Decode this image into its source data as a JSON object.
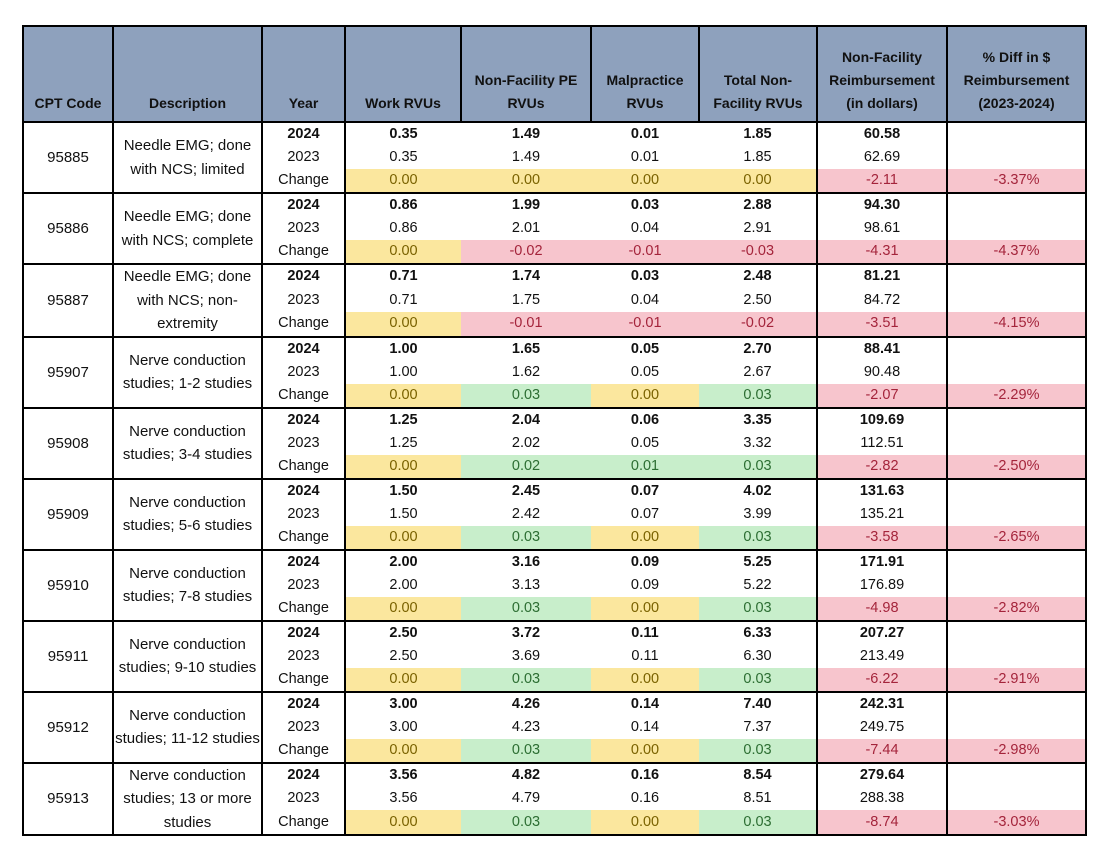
{
  "headers": {
    "cpt_code": "CPT Code",
    "description": "Description",
    "year": "Year",
    "work": "Work RVUs",
    "pe_l1": "Non-Facility PE",
    "pe_l2": "RVUs",
    "mal_l1": "Malpractice",
    "mal_l2": "RVUs",
    "tot_l1": "Total Non-",
    "tot_l2": "Facility RVUs",
    "reimb_l1": "Non-Facility",
    "reimb_l2": "Reimbursement",
    "reimb_l3": "(in dollars)",
    "pct_l1": "% Diff in $",
    "pct_l2": "Reimbursement",
    "pct_l3": "(2023-2024)"
  },
  "labels": {
    "y2024": "2024",
    "y2023": "2023",
    "change": "Change"
  },
  "colors": {
    "header": "#8ea1bd",
    "yellow": "#fbe79e",
    "green": "#c8eecb",
    "red": "#f7c5cd"
  },
  "rows": [
    {
      "code": "95885",
      "desc": "Needle EMG; done with NCS; limited",
      "v2024": [
        "0.35",
        "1.49",
        "0.01",
        "1.85",
        "60.58"
      ],
      "v2023": [
        "0.35",
        "1.49",
        "0.01",
        "1.85",
        "62.69"
      ],
      "change": [
        "0.00",
        "0.00",
        "0.00",
        "0.00",
        "-2.11"
      ],
      "pct": "-3.37%",
      "change_colors": [
        "yellow",
        "yellow",
        "yellow",
        "yellow",
        "red",
        "red"
      ]
    },
    {
      "code": "95886",
      "desc": "Needle EMG; done with NCS; complete",
      "v2024": [
        "0.86",
        "1.99",
        "0.03",
        "2.88",
        "94.30"
      ],
      "v2023": [
        "0.86",
        "2.01",
        "0.04",
        "2.91",
        "98.61"
      ],
      "change": [
        "0.00",
        "-0.02",
        "-0.01",
        "-0.03",
        "-4.31"
      ],
      "pct": "-4.37%",
      "change_colors": [
        "yellow",
        "red",
        "red",
        "red",
        "red",
        "red"
      ]
    },
    {
      "code": "95887",
      "desc": "Needle EMG; done with NCS; non-extremity",
      "v2024": [
        "0.71",
        "1.74",
        "0.03",
        "2.48",
        "81.21"
      ],
      "v2023": [
        "0.71",
        "1.75",
        "0.04",
        "2.50",
        "84.72"
      ],
      "change": [
        "0.00",
        "-0.01",
        "-0.01",
        "-0.02",
        "-3.51"
      ],
      "pct": "-4.15%",
      "change_colors": [
        "yellow",
        "red",
        "red",
        "red",
        "red",
        "red"
      ]
    },
    {
      "code": "95907",
      "desc": "Nerve conduction studies; 1-2 studies",
      "v2024": [
        "1.00",
        "1.65",
        "0.05",
        "2.70",
        "88.41"
      ],
      "v2023": [
        "1.00",
        "1.62",
        "0.05",
        "2.67",
        "90.48"
      ],
      "change": [
        "0.00",
        "0.03",
        "0.00",
        "0.03",
        "-2.07"
      ],
      "pct": "-2.29%",
      "change_colors": [
        "yellow",
        "green",
        "yellow",
        "green",
        "red",
        "red"
      ]
    },
    {
      "code": "95908",
      "desc": "Nerve conduction studies; 3-4 studies",
      "v2024": [
        "1.25",
        "2.04",
        "0.06",
        "3.35",
        "109.69"
      ],
      "v2023": [
        "1.25",
        "2.02",
        "0.05",
        "3.32",
        "112.51"
      ],
      "change": [
        "0.00",
        "0.02",
        "0.01",
        "0.03",
        "-2.82"
      ],
      "pct": "-2.50%",
      "change_colors": [
        "yellow",
        "green",
        "green",
        "green",
        "red",
        "red"
      ]
    },
    {
      "code": "95909",
      "desc": "Nerve conduction studies; 5-6 studies",
      "v2024": [
        "1.50",
        "2.45",
        "0.07",
        "4.02",
        "131.63"
      ],
      "v2023": [
        "1.50",
        "2.42",
        "0.07",
        "3.99",
        "135.21"
      ],
      "change": [
        "0.00",
        "0.03",
        "0.00",
        "0.03",
        "-3.58"
      ],
      "pct": "-2.65%",
      "change_colors": [
        "yellow",
        "green",
        "yellow",
        "green",
        "red",
        "red"
      ]
    },
    {
      "code": "95910",
      "desc": "Nerve conduction studies; 7-8 studies",
      "v2024": [
        "2.00",
        "3.16",
        "0.09",
        "5.25",
        "171.91"
      ],
      "v2023": [
        "2.00",
        "3.13",
        "0.09",
        "5.22",
        "176.89"
      ],
      "change": [
        "0.00",
        "0.03",
        "0.00",
        "0.03",
        "-4.98"
      ],
      "pct": "-2.82%",
      "change_colors": [
        "yellow",
        "green",
        "yellow",
        "green",
        "red",
        "red"
      ]
    },
    {
      "code": "95911",
      "desc": "Nerve conduction studies; 9-10 studies",
      "v2024": [
        "2.50",
        "3.72",
        "0.11",
        "6.33",
        "207.27"
      ],
      "v2023": [
        "2.50",
        "3.69",
        "0.11",
        "6.30",
        "213.49"
      ],
      "change": [
        "0.00",
        "0.03",
        "0.00",
        "0.03",
        "-6.22"
      ],
      "pct": "-2.91%",
      "change_colors": [
        "yellow",
        "green",
        "yellow",
        "green",
        "red",
        "red"
      ]
    },
    {
      "code": "95912",
      "desc": "Nerve conduction studies; 11-12 studies",
      "v2024": [
        "3.00",
        "4.26",
        "0.14",
        "7.40",
        "242.31"
      ],
      "v2023": [
        "3.00",
        "4.23",
        "0.14",
        "7.37",
        "249.75"
      ],
      "change": [
        "0.00",
        "0.03",
        "0.00",
        "0.03",
        "-7.44"
      ],
      "pct": "-2.98%",
      "change_colors": [
        "yellow",
        "green",
        "yellow",
        "green",
        "red",
        "red"
      ]
    },
    {
      "code": "95913",
      "desc": "Nerve conduction studies; 13 or more studies",
      "v2024": [
        "3.56",
        "4.82",
        "0.16",
        "8.54",
        "279.64"
      ],
      "v2023": [
        "3.56",
        "4.79",
        "0.16",
        "8.51",
        "288.38"
      ],
      "change": [
        "0.00",
        "0.03",
        "0.00",
        "0.03",
        "-8.74"
      ],
      "pct": "-3.03%",
      "change_colors": [
        "yellow",
        "green",
        "yellow",
        "green",
        "red",
        "red"
      ]
    }
  ]
}
